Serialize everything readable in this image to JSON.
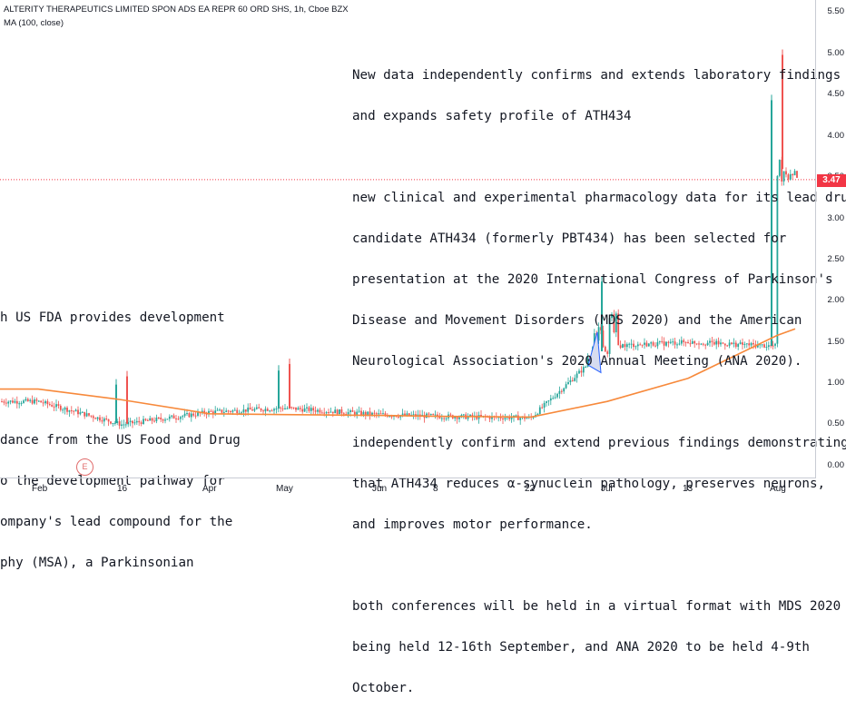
{
  "header": {
    "symbol_line": "ALTERITY THERAPEUTICS LIMITED SPON ADS EA REPR 60 ORD SHS, 1h, Cboe BZX",
    "indicator_line": "MA (100, close)"
  },
  "annotations": {
    "right_note": [
      "New data independently confirms and extends laboratory findings",
      "and expands safety profile of ATH434",
      "",
      "new clinical and experimental pharmacology data for its lead drug",
      "candidate ATH434 (formerly PBT434) has been selected for",
      "presentation at the 2020 International Congress of Parkinson's",
      "Disease and Movement Disorders (MDS 2020) and the American",
      "Neurological Association's 2020 Annual Meeting (ANA 2020).",
      "",
      "independently confirm and extend previous findings demonstrating",
      "that ATH434 reduces α-synuclein pathology, preserves neurons,",
      "and improves motor performance.",
      "",
      "both conferences will be held in a virtual format with MDS 2020",
      "being held 12-16th September, and ANA 2020 to be held 4-9th",
      "October."
    ],
    "left_note_title": "h US FDA provides development",
    "left_note_body": [
      "dance from the US Food and Drug",
      "o the development pathway for",
      "ompany's lead compound for the",
      "phy (MSA), a Parkinsonian"
    ]
  },
  "colors": {
    "up": "#26a69a",
    "down": "#ef5350",
    "ma": "#f7893b",
    "price_line": "#f23645",
    "trend": "#2962ff",
    "trend_fill": "#d7dcef"
  },
  "price_badge": "3.47",
  "earnings_badge": "E",
  "chart_data": {
    "type": "candlestick",
    "yaxis": {
      "ticks": [
        "5.50",
        "5.00",
        "4.50",
        "4.00",
        "3.50",
        "3.00",
        "2.50",
        "2.00",
        "1.50",
        "1.00",
        "0.50",
        "0.00"
      ],
      "ylim": [
        0,
        5.5
      ]
    },
    "xaxis": {
      "ticks": [
        "Feb",
        "16",
        "Apr",
        "May",
        "Jun",
        "8",
        "22",
        "Jul",
        "13",
        "Aug"
      ]
    },
    "last_price": 3.47,
    "series": [
      {
        "name": "MA (100, close)",
        "points": [
          [
            "Feb",
            0.93
          ],
          [
            "16",
            0.8
          ],
          [
            "Apr",
            0.63
          ],
          [
            "May",
            0.62
          ],
          [
            "Jun",
            0.61
          ],
          [
            "8",
            0.6
          ],
          [
            "22",
            0.59
          ],
          [
            "Jul",
            0.78
          ],
          [
            "13",
            1.06
          ],
          [
            "Aug",
            1.58
          ]
        ]
      }
    ],
    "price_points": [
      [
        "Feb",
        0.78
      ],
      [
        "16",
        0.5
      ],
      [
        "Apr",
        0.65
      ],
      [
        "May",
        0.7
      ],
      [
        "Jun",
        0.62
      ],
      [
        "8",
        0.6
      ],
      [
        "22",
        0.58
      ],
      [
        "Jul",
        1.45
      ],
      [
        "13",
        1.5
      ],
      [
        "Aug",
        1.45
      ],
      [
        "Aug",
        3.6
      ]
    ],
    "spikes": [
      [
        "16",
        1.05
      ],
      [
        "16",
        1.15
      ],
      [
        "May",
        1.22
      ],
      [
        "May",
        1.3
      ],
      [
        "Jul",
        2.3
      ],
      [
        "Aug",
        5.05
      ],
      [
        "Aug",
        4.5
      ]
    ]
  }
}
